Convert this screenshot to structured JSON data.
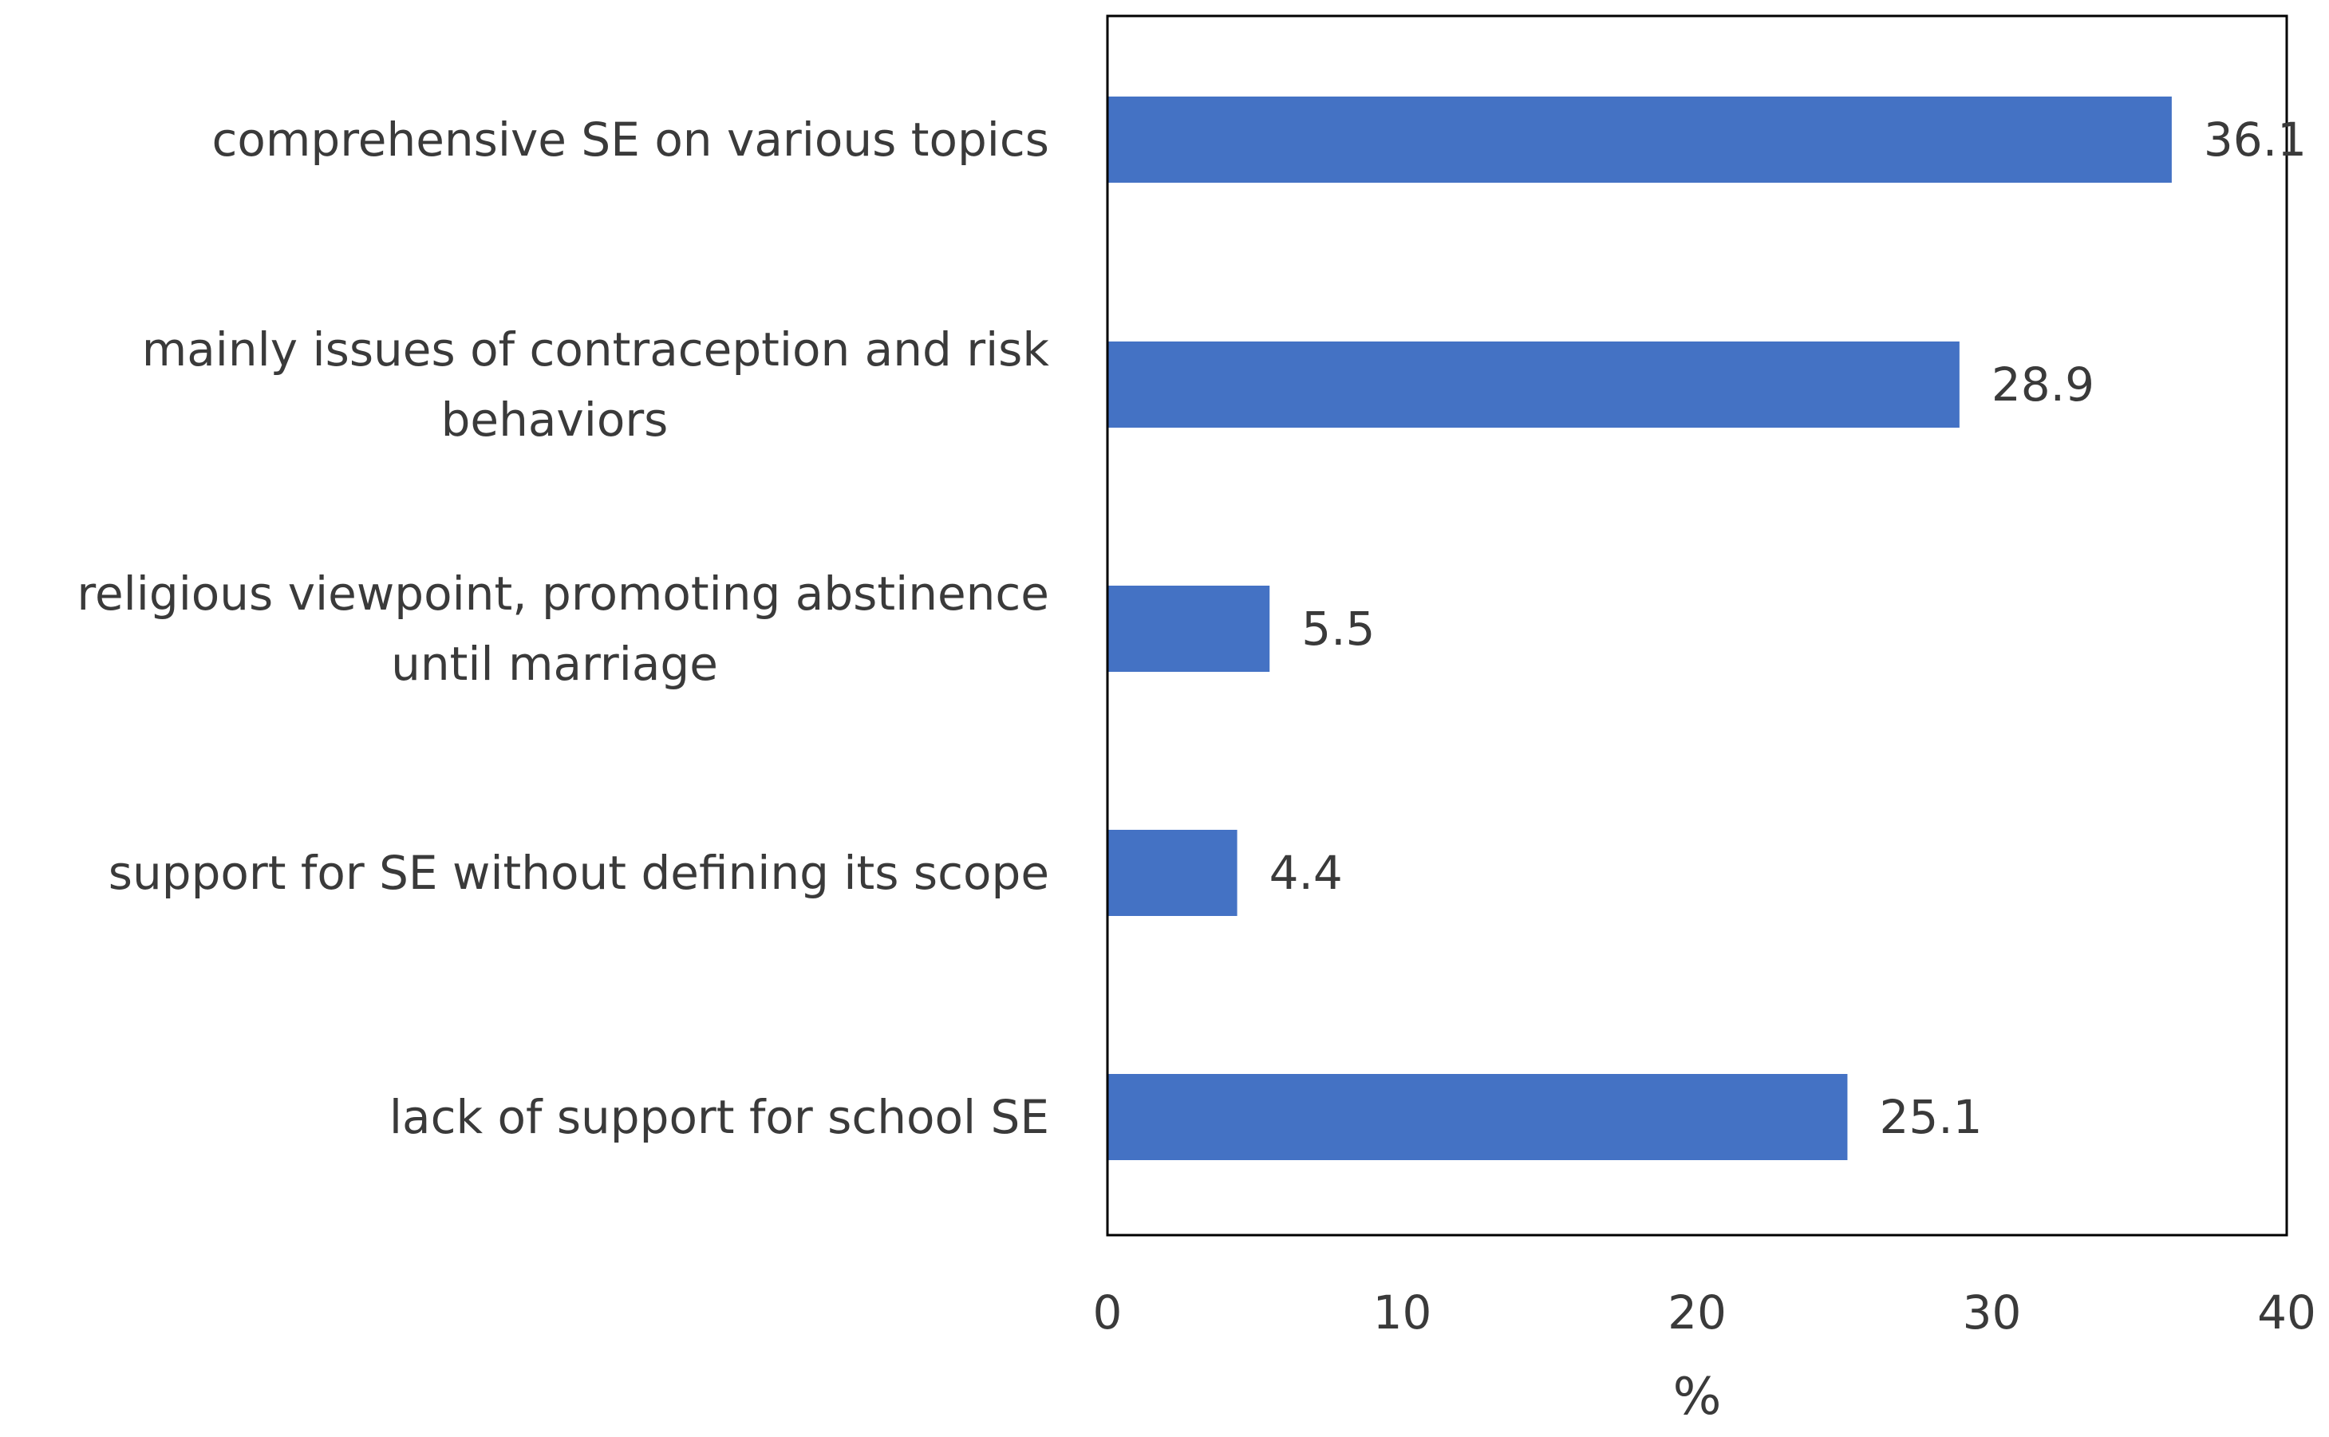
{
  "chart_data": {
    "type": "bar",
    "orientation": "horizontal",
    "categories": [
      "comprehensive SE on various topics",
      "mainly issues of contraception and risk behaviors",
      "religious viewpoint, promoting abstinence until marriage",
      "support for SE without defining its scope",
      "lack of support for school SE"
    ],
    "category_lines": [
      [
        "comprehensive SE on various topics"
      ],
      [
        "mainly issues of contraception and risk",
        "behaviors"
      ],
      [
        "religious viewpoint, promoting abstinence",
        "until marriage"
      ],
      [
        "support for SE without defining its scope"
      ],
      [
        "lack of support for school SE"
      ]
    ],
    "values": [
      36.1,
      28.9,
      5.5,
      4.4,
      25.1
    ],
    "data_labels": [
      "36.1",
      "28.9",
      "5.5",
      "4.4",
      "25.1"
    ],
    "xlabel": "%",
    "xlim": [
      0,
      40
    ],
    "xticks": [
      "0",
      "10",
      "20",
      "30",
      "40"
    ],
    "grid": false,
    "legend": "none",
    "bar_color": "#4472C4",
    "frame_color": "#000000",
    "text_color": "#3a3a3a"
  }
}
